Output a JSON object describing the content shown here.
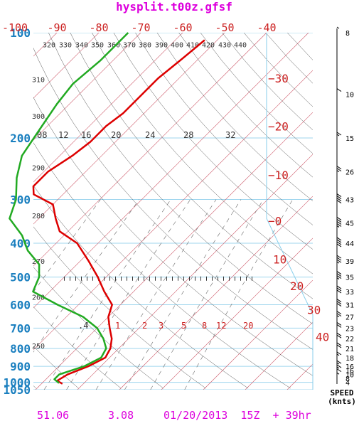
{
  "chart_data": {
    "type": "line",
    "title": "hysplit.t00z.gfsf",
    "footer": {
      "left": "51.06",
      "mid": "3.08",
      "right": "01/20/2013  15Z  + 39hr"
    },
    "pressure_levels": [
      100,
      200,
      300,
      400,
      500,
      600,
      700,
      800,
      900,
      1000,
      1050
    ],
    "isotherm_labels": [
      "-100",
      "-90",
      "-80",
      "-70",
      "-60",
      "-50",
      "-40",
      "-30",
      "-20",
      "-10",
      "0",
      "10",
      "20",
      "30",
      "40"
    ],
    "isotherms_right": [
      {
        "label": "-30",
        "p": 135
      },
      {
        "label": "-20",
        "p": 185
      },
      {
        "label": "-10",
        "p": 255
      },
      {
        "label": "0",
        "p": 345
      },
      {
        "label": "10",
        "p": 445
      },
      {
        "label": "20",
        "p": 530
      },
      {
        "label": "30",
        "p": 620
      },
      {
        "label": "40",
        "p": 740
      }
    ],
    "theta_labels": [
      {
        "label": "320",
        "p": 108
      },
      {
        "label": "330",
        "p": 108
      },
      {
        "label": "340",
        "p": 108
      },
      {
        "label": "350",
        "p": 108
      },
      {
        "label": "360",
        "p": 108
      },
      {
        "label": "370",
        "p": 108
      },
      {
        "label": "380",
        "p": 108
      },
      {
        "label": "390",
        "p": 108
      },
      {
        "label": "400",
        "p": 108
      },
      {
        "label": "410",
        "p": 108
      },
      {
        "label": "420",
        "p": 108
      },
      {
        "label": "430",
        "p": 108
      },
      {
        "label": "440",
        "p": 108
      },
      {
        "label": "310",
        "p": 136
      },
      {
        "label": "300",
        "p": 173
      },
      {
        "label": "290",
        "p": 243
      },
      {
        "label": "280",
        "p": 333
      },
      {
        "label": "270",
        "p": 450
      },
      {
        "label": "260",
        "p": 570
      },
      {
        "label": "250",
        "p": 785
      }
    ],
    "mixing_ratio_labels_upper": [
      "08",
      "12",
      "16",
      "20",
      "24",
      "28",
      "32"
    ],
    "mixing_ratio_labels_lower": [
      ".4",
      "1",
      "2",
      "3",
      "5",
      "8",
      "12",
      "20"
    ],
    "series": [
      {
        "name": "Temperature",
        "color": "#dd0000",
        "points": [
          {
            "p": 105,
            "t": -53
          },
          {
            "p": 120,
            "t": -54
          },
          {
            "p": 135,
            "t": -55
          },
          {
            "p": 150,
            "t": -55
          },
          {
            "p": 170,
            "t": -55
          },
          {
            "p": 185,
            "t": -56
          },
          {
            "p": 205,
            "t": -56
          },
          {
            "p": 225,
            "t": -57
          },
          {
            "p": 250,
            "t": -59
          },
          {
            "p": 275,
            "t": -59
          },
          {
            "p": 290,
            "t": -57
          },
          {
            "p": 310,
            "t": -50
          },
          {
            "p": 340,
            "t": -46
          },
          {
            "p": 370,
            "t": -42
          },
          {
            "p": 400,
            "t": -35
          },
          {
            "p": 450,
            "t": -28
          },
          {
            "p": 500,
            "t": -22
          },
          {
            "p": 550,
            "t": -17
          },
          {
            "p": 600,
            "t": -12
          },
          {
            "p": 650,
            "t": -10
          },
          {
            "p": 700,
            "t": -7
          },
          {
            "p": 750,
            "t": -4
          },
          {
            "p": 800,
            "t": -2
          },
          {
            "p": 850,
            "t": -1
          },
          {
            "p": 900,
            "t": -3
          },
          {
            "p": 950,
            "t": -6
          },
          {
            "p": 990,
            "t": -7
          },
          {
            "p": 1010,
            "t": -5
          }
        ]
      },
      {
        "name": "Dewpoint",
        "color": "#22aa22",
        "points": [
          {
            "p": 100,
            "t": -73
          },
          {
            "p": 120,
            "t": -73
          },
          {
            "p": 140,
            "t": -74
          },
          {
            "p": 160,
            "t": -73
          },
          {
            "p": 190,
            "t": -71
          },
          {
            "p": 225,
            "t": -69
          },
          {
            "p": 260,
            "t": -65
          },
          {
            "p": 300,
            "t": -60
          },
          {
            "p": 340,
            "t": -57
          },
          {
            "p": 380,
            "t": -50
          },
          {
            "p": 420,
            "t": -45
          },
          {
            "p": 460,
            "t": -39
          },
          {
            "p": 500,
            "t": -36
          },
          {
            "p": 550,
            "t": -34
          },
          {
            "p": 600,
            "t": -25
          },
          {
            "p": 650,
            "t": -16
          },
          {
            "p": 700,
            "t": -10
          },
          {
            "p": 750,
            "t": -6
          },
          {
            "p": 800,
            "t": -3
          },
          {
            "p": 850,
            "t": -2
          },
          {
            "p": 900,
            "t": -4
          },
          {
            "p": 950,
            "t": -8
          },
          {
            "p": 980,
            "t": -8
          },
          {
            "p": 1005,
            "t": -6
          }
        ]
      }
    ],
    "lcl_dash_p": 505,
    "wind": {
      "label_line1": "SPEED",
      "label_line2": "(knts)",
      "speeds": [
        {
          "p": 100,
          "kt": "8"
        },
        {
          "p": 150,
          "kt": "10"
        },
        {
          "p": 200,
          "kt": "15"
        },
        {
          "p": 250,
          "kt": "26"
        },
        {
          "p": 300,
          "kt": "43"
        },
        {
          "p": 350,
          "kt": "45"
        },
        {
          "p": 400,
          "kt": "44"
        },
        {
          "p": 450,
          "kt": "39"
        },
        {
          "p": 500,
          "kt": "35"
        },
        {
          "p": 550,
          "kt": "33"
        },
        {
          "p": 600,
          "kt": "31"
        },
        {
          "p": 650,
          "kt": "27"
        },
        {
          "p": 700,
          "kt": "23"
        },
        {
          "p": 750,
          "kt": "22"
        },
        {
          "p": 800,
          "kt": "21"
        },
        {
          "p": 850,
          "kt": "18"
        },
        {
          "p": 900,
          "kt": "16"
        },
        {
          "p": 925,
          "kt": "16"
        },
        {
          "p": 950,
          "kt": "10"
        },
        {
          "p": 975,
          "kt": "8"
        },
        {
          "p": 1000,
          "kt": "4"
        }
      ]
    },
    "colors": {
      "title": "#dd00dd",
      "pressure_axis": "#1a7fbf",
      "isotherm": "#cc2222",
      "temp_line": "#dd0000",
      "dew_line": "#22aa22",
      "grid": "#87ceeb"
    }
  }
}
